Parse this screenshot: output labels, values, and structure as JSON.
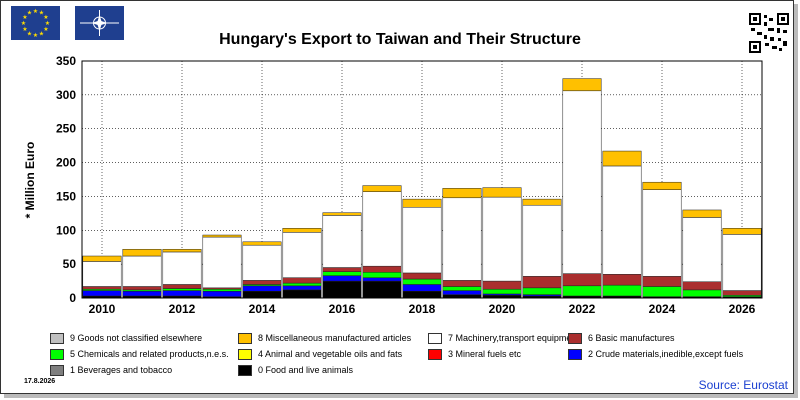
{
  "title": "Hungary's Export to Taiwan and Their Structure",
  "date": "17.8.2026",
  "source": "Source: Eurostat",
  "icons": {
    "flag_left": "eu-flag-icon",
    "flag_right": "nato-flag-icon",
    "qr": "qr-code-icon"
  },
  "colors": {
    "flag_blue": "#1f3f8f",
    "source_text": "#1a3fd0"
  },
  "chart_data": {
    "type": "bar",
    "stacked": true,
    "title": "Hungary's Export to Taiwan and Their Structure",
    "ylabel": "* Million Euro",
    "xlabel": "",
    "ylim": [
      0,
      350
    ],
    "yticks": [
      0,
      50,
      100,
      150,
      200,
      250,
      300,
      350
    ],
    "categories": [
      "2010",
      "2011",
      "2012",
      "2013",
      "2014",
      "2015",
      "2016",
      "2017",
      "2018",
      "2019",
      "2020",
      "2021",
      "2022",
      "2023",
      "2024",
      "2025",
      "2026"
    ],
    "xtick_labels": [
      "2010",
      "2012",
      "2014",
      "2016",
      "2018",
      "2020",
      "2022",
      "2024",
      "2026"
    ],
    "grid": true,
    "series": [
      {
        "name": "0 Food and live animals",
        "color": "#000000",
        "values": [
          3,
          3,
          3,
          2,
          10,
          12,
          25,
          25,
          10,
          5,
          4,
          3,
          3,
          3,
          2,
          2,
          2
        ]
      },
      {
        "name": "1 Beverages and tobacco",
        "color": "#7f7f7f",
        "values": [
          0,
          0,
          0,
          0,
          0,
          0,
          0,
          0,
          0,
          0,
          0,
          0,
          0,
          0,
          0,
          0,
          0
        ]
      },
      {
        "name": "2 Crude materials,inedible,except fuels",
        "color": "#0000ff",
        "values": [
          8,
          7,
          8,
          8,
          8,
          6,
          8,
          5,
          10,
          6,
          2,
          2,
          0,
          0,
          0,
          0,
          0
        ]
      },
      {
        "name": "3 Mineral fuels etc",
        "color": "#ff0000",
        "values": [
          0,
          0,
          0,
          0,
          0,
          0,
          0,
          0,
          0,
          0,
          0,
          0,
          0,
          0,
          0,
          0,
          0
        ]
      },
      {
        "name": "4 Animal and vegetable oils and fats",
        "color": "#ffff00",
        "values": [
          0,
          0,
          0,
          0,
          0,
          0,
          0,
          0,
          0,
          0,
          0,
          0,
          0,
          0,
          0,
          0,
          0
        ]
      },
      {
        "name": "5 Chemicals and related products,n.e.s.",
        "color": "#00ff00",
        "values": [
          2,
          2,
          3,
          3,
          2,
          4,
          6,
          8,
          8,
          6,
          7,
          10,
          15,
          16,
          15,
          10,
          2
        ]
      },
      {
        "name": "6 Basic manufactures",
        "color": "#aa2e2e",
        "values": [
          4,
          5,
          6,
          2,
          6,
          8,
          6,
          9,
          9,
          9,
          12,
          17,
          18,
          16,
          15,
          12,
          7
        ]
      },
      {
        "name": "7 Machinery,transport equipment",
        "color": "#ffffff",
        "values": [
          37,
          45,
          48,
          75,
          52,
          67,
          77,
          110,
          97,
          122,
          124,
          105,
          270,
          160,
          128,
          95,
          83
        ]
      },
      {
        "name": "8 Miscellaneous manufactured articles",
        "color": "#ffc000",
        "values": [
          8,
          10,
          4,
          3,
          5,
          6,
          4,
          9,
          12,
          14,
          14,
          9,
          18,
          22,
          11,
          11,
          9
        ]
      },
      {
        "name": "9 Goods not classified elsewhere",
        "color": "#c0c0c0",
        "values": [
          0,
          0,
          0,
          0,
          0,
          0,
          0,
          0,
          0,
          0,
          0,
          0,
          0,
          0,
          0,
          0,
          0
        ]
      }
    ],
    "legend": {
      "placement": "bottom",
      "rows": [
        [
          {
            "label": "9 Goods not classified elsewhere",
            "color": "#c0c0c0"
          },
          {
            "label": "8 Miscellaneous manufactured articles",
            "color": "#ffc000"
          },
          {
            "label": "7 Machinery,transport equipment",
            "color": "#ffffff"
          },
          {
            "label": "6 Basic manufactures",
            "color": "#aa2e2e"
          }
        ],
        [
          {
            "label": "5 Chemicals and related products,n.e.s.",
            "color": "#00ff00"
          },
          {
            "label": "4 Animal and vegetable oils and fats",
            "color": "#ffff00"
          },
          {
            "label": "3 Mineral fuels etc",
            "color": "#ff0000"
          },
          {
            "label": "2 Crude materials,inedible,except fuels",
            "color": "#0000ff"
          }
        ],
        [
          {
            "label": "1 Beverages and tobacco",
            "color": "#7f7f7f"
          },
          {
            "label": "0 Food and live animals",
            "color": "#000000"
          }
        ]
      ]
    }
  }
}
